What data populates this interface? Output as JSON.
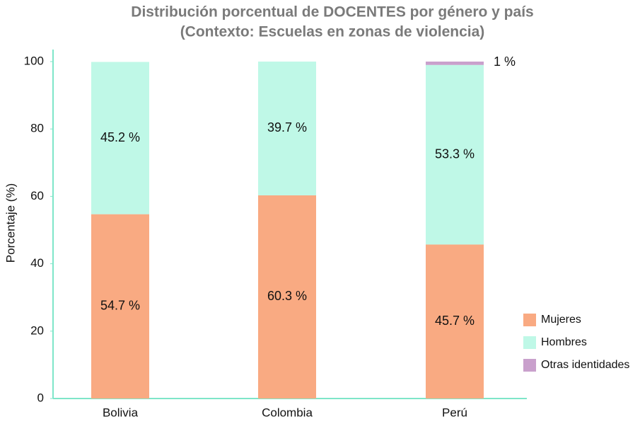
{
  "chart_data": {
    "type": "stacked_bar",
    "title": "Distribución porcentual de DOCENTES por género y país",
    "subtitle": "(Contexto: Escuelas en zonas de violencia)",
    "y_label": "Porcentaje (%)",
    "categories": [
      "Bolivia",
      "Colombia",
      "Perú"
    ],
    "series": [
      {
        "name": "Mujeres",
        "color": "#f9aa82",
        "values": [
          54.7,
          60.3,
          45.7
        ],
        "value_labels": [
          "54.7 %",
          "60.3 %",
          "45.7 %"
        ]
      },
      {
        "name": "Hombres",
        "color": "#bff8e7",
        "values": [
          45.2,
          39.7,
          53.3
        ],
        "value_labels": [
          "45.2 %",
          "39.7 %",
          "53.3 %"
        ]
      },
      {
        "name": "Otras identidades",
        "color": "#c9a0cc",
        "values": [
          0,
          0,
          1
        ],
        "value_labels": [
          null,
          null,
          "1 %"
        ]
      }
    ],
    "ylim": [
      0,
      100
    ],
    "yticks": [
      0,
      20,
      40,
      60,
      80,
      100
    ],
    "legend": "lower right"
  }
}
